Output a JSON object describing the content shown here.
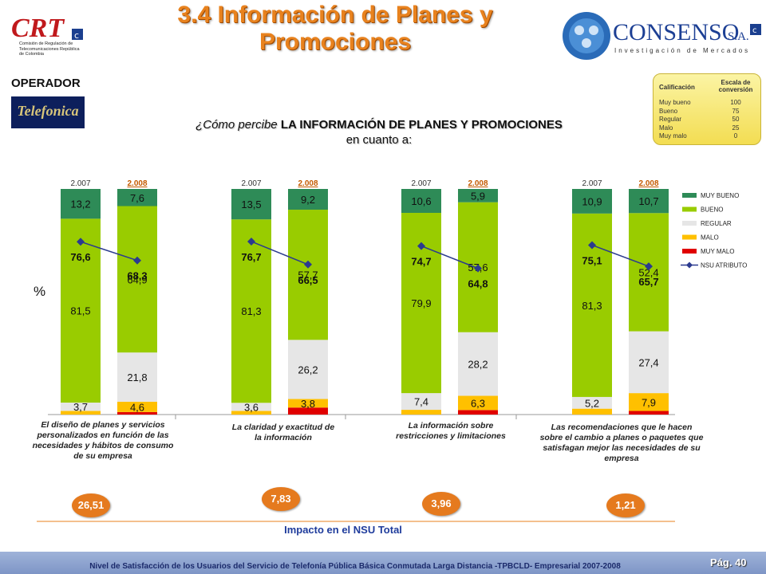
{
  "header": {
    "title_line1": "3.4 Información de Planes y",
    "title_line2": "Promociones",
    "crt_logo_text": "CRT",
    "crt_logo_caption": "Comisión de Regulación de Telecomunicaciones República de Colombia",
    "consenso_logo_text": "CONSENSO",
    "consenso_logo_suffix": "S.A.",
    "consenso_logo_caption": "Investigación de Mercados"
  },
  "operator": {
    "label": "OPERADOR",
    "logo_text": "Telefonica"
  },
  "question": {
    "prefix": "¿Cómo percibe ",
    "bold": "LA INFORMACIÓN DE PLANES Y PROMOCIONES",
    "suffix": " en cuanto a:"
  },
  "scale": {
    "col1": "Calificación",
    "col2": "Escala de conversión",
    "rows": [
      {
        "label": "Muy bueno",
        "value": "100"
      },
      {
        "label": "Bueno",
        "value": "75"
      },
      {
        "label": "Regular",
        "value": "50"
      },
      {
        "label": "Malo",
        "value": "25"
      },
      {
        "label": "Muy malo",
        "value": "0"
      }
    ]
  },
  "y_unit": "%",
  "colors": {
    "muy_bueno": "#2e8b57",
    "bueno": "#99cc00",
    "regular": "#e6e6e6",
    "malo": "#ffc000",
    "muy_malo": "#e00000",
    "nsu": "#2b3a8f",
    "impact": "#e57a1e",
    "title": "#e8821e"
  },
  "chart_data": {
    "type": "bar",
    "stacked": true,
    "ylim": [
      0,
      100
    ],
    "legend_position": "right",
    "series_names": [
      "MUY BUENO",
      "BUENO",
      "REGULAR",
      "MALO",
      "MUY MALO",
      "NSU ATRIBUTO"
    ],
    "groups": [
      {
        "category": "El diseño de planes y servicios personalizados en función de las necesidades y hábitos de consumo de su empresa",
        "impact": "26,51",
        "bars": [
          {
            "year": "2.007",
            "muy_bueno": 13.2,
            "bueno": 81.5,
            "regular": 3.7,
            "malo": 1.6,
            "muy_malo": 0.0,
            "nsu": 76.6,
            "labels": {
              "muy_bueno": "13,2",
              "bueno": "81,5",
              "regular": "3,7",
              "malo": "",
              "muy_malo": "",
              "nsu": "76,6"
            }
          },
          {
            "year": "2.008",
            "muy_bueno": 7.6,
            "bueno": 64.9,
            "regular": 21.8,
            "malo": 4.6,
            "muy_malo": 1.1,
            "nsu": 68.3,
            "labels": {
              "muy_bueno": "7,6",
              "bueno": "64,9",
              "regular": "21,8",
              "malo": "4,6",
              "muy_malo": "",
              "nsu": "68,3"
            }
          }
        ]
      },
      {
        "category": "La claridad y exactitud de la información",
        "impact": "7,83",
        "bars": [
          {
            "year": "2.007",
            "muy_bueno": 13.5,
            "bueno": 81.3,
            "regular": 3.6,
            "malo": 1.6,
            "muy_malo": 0.0,
            "nsu": 76.7,
            "labels": {
              "muy_bueno": "13,5",
              "bueno": "81,3",
              "regular": "3,6",
              "malo": "",
              "muy_malo": "",
              "nsu": "76,7"
            }
          },
          {
            "year": "2.008",
            "muy_bueno": 9.2,
            "bueno": 57.7,
            "regular": 26.2,
            "malo": 3.8,
            "muy_malo": 3.1,
            "nsu": 66.5,
            "labels": {
              "muy_bueno": "9,2",
              "bueno": "57,7",
              "regular": "26,2",
              "malo": "3,8",
              "muy_malo": "",
              "nsu": "66,5"
            }
          }
        ]
      },
      {
        "category": "La información sobre restricciones y limitaciones",
        "impact": "3,96",
        "bars": [
          {
            "year": "2.007",
            "muy_bueno": 10.6,
            "bueno": 79.9,
            "regular": 7.4,
            "malo": 2.1,
            "muy_malo": 0.0,
            "nsu": 74.7,
            "labels": {
              "muy_bueno": "10,6",
              "bueno": "79,9",
              "regular": "7,4",
              "malo": "",
              "muy_malo": "",
              "nsu": "74,7"
            }
          },
          {
            "year": "2.008",
            "muy_bueno": 5.9,
            "bueno": 57.6,
            "regular": 28.2,
            "malo": 6.3,
            "muy_malo": 2.0,
            "nsu": 64.8,
            "labels": {
              "muy_bueno": "5,9",
              "bueno": "57,6",
              "regular": "28,2",
              "malo": "6,3",
              "muy_malo": "",
              "nsu": "64,8"
            }
          }
        ]
      },
      {
        "category": "Las recomendaciones que le hacen sobre el cambio a planes o paquetes que satisfagan mejor las necesidades de su empresa",
        "impact": "1,21",
        "bars": [
          {
            "year": "2.007",
            "muy_bueno": 10.9,
            "bueno": 81.3,
            "regular": 5.2,
            "malo": 2.6,
            "muy_malo": 0.0,
            "nsu": 75.1,
            "labels": {
              "muy_bueno": "10,9",
              "bueno": "81,3",
              "regular": "5,2",
              "malo": "",
              "muy_malo": "",
              "nsu": "75,1"
            }
          },
          {
            "year": "2.008",
            "muy_bueno": 10.7,
            "bueno": 52.4,
            "regular": 27.4,
            "malo": 7.9,
            "muy_malo": 1.6,
            "nsu": 65.7,
            "labels": {
              "muy_bueno": "10,7",
              "bueno": "52,4",
              "regular": "27,4",
              "malo": "7,9",
              "muy_malo": "",
              "nsu": "65,7"
            }
          }
        ]
      }
    ]
  },
  "impact_label": "Impacto en el NSU Total",
  "footer": {
    "text": "Nivel de Satisfacción de los Usuarios del Servicio de Telefonía Pública Básica Conmutada Larga Distancia -TPBCLD- Empresarial 2007-2008",
    "page": "Pág. 40"
  }
}
